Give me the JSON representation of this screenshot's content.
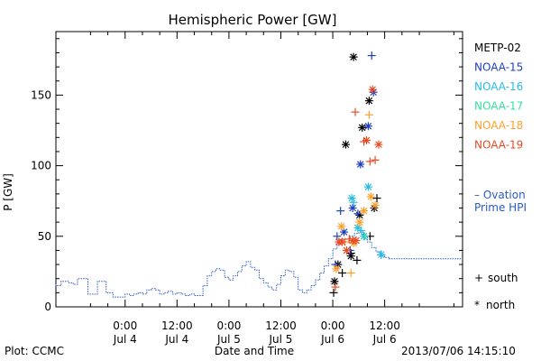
{
  "chart_data": {
    "type": "scatter",
    "title": "Hemispheric Power [GW]",
    "xlabel": "Date and Time",
    "ylabel": "P [GW]",
    "ylim": [
      0,
      195
    ],
    "y_ticks": [
      0,
      50,
      100,
      150
    ],
    "x_range_hours": [
      -8,
      39
    ],
    "x_ticks": [
      {
        "h": 0,
        "line1": "0:00",
        "line2": "Jul 4"
      },
      {
        "h": 6,
        "line1": "12:00",
        "line2": "Jul 4"
      },
      {
        "h": 12,
        "line1": "0:00",
        "line2": "Jul 5"
      },
      {
        "h": 18,
        "line1": "12:00",
        "line2": "Jul 5"
      },
      {
        "h": 24,
        "line1": "0:00",
        "line2": "Jul 6"
      },
      {
        "h": 30,
        "line1": "12:00",
        "line2": "Jul 6"
      }
    ],
    "series": [
      {
        "name": "METP-02",
        "color": "#000000",
        "points": [
          [
            24.1,
            10,
            "+"
          ],
          [
            24.2,
            18,
            "*"
          ],
          [
            24.6,
            30,
            "*"
          ],
          [
            25.1,
            24,
            "+"
          ],
          [
            25.5,
            115,
            "*"
          ],
          [
            26.1,
            36,
            "*"
          ],
          [
            26.1,
            38,
            "+"
          ],
          [
            26.4,
            177,
            "*"
          ],
          [
            26.8,
            33,
            "+"
          ],
          [
            27.1,
            65,
            "*"
          ],
          [
            27.4,
            127,
            "*"
          ],
          [
            28.2,
            146,
            "*"
          ],
          [
            28.3,
            50,
            "+"
          ],
          [
            28.8,
            70,
            "*"
          ],
          [
            29.1,
            77,
            "+"
          ]
        ]
      },
      {
        "name": "NOAA-15",
        "color": "#1f3fbf",
        "points": [
          [
            24.3,
            30,
            "+"
          ],
          [
            24.5,
            50,
            "+"
          ],
          [
            24.9,
            68,
            "+"
          ],
          [
            25.3,
            53,
            "*"
          ],
          [
            26.0,
            40,
            "+"
          ],
          [
            26.3,
            70,
            "*"
          ],
          [
            26.9,
            66,
            "+"
          ],
          [
            27.2,
            101,
            "*"
          ],
          [
            28.1,
            128,
            "*"
          ],
          [
            28.5,
            178,
            "+"
          ],
          [
            28.7,
            152,
            "*"
          ],
          [
            29.6,
            37,
            "+"
          ]
        ]
      },
      {
        "name": "NOAA-16",
        "color": "#26bde6",
        "points": [
          [
            26.2,
            77,
            "*"
          ],
          [
            26.4,
            74,
            "+"
          ],
          [
            26.9,
            56,
            "*"
          ],
          [
            27.3,
            54,
            "+"
          ],
          [
            27.6,
            50,
            "*"
          ],
          [
            28.1,
            85,
            "*"
          ],
          [
            29.6,
            37,
            "*"
          ]
        ]
      },
      {
        "name": "NOAA-17",
        "color": "#33e0a0",
        "points": [
          [
            27.7,
            50,
            "+"
          ]
        ]
      },
      {
        "name": "NOAA-18",
        "color": "#ff9f2a",
        "points": [
          [
            24.4,
            27,
            "*"
          ],
          [
            25.0,
            57,
            "*"
          ],
          [
            25.4,
            46,
            "+"
          ],
          [
            26.1,
            24,
            "+"
          ],
          [
            26.4,
            45,
            "*"
          ],
          [
            27.1,
            60,
            "*"
          ],
          [
            27.6,
            68,
            "*"
          ],
          [
            28.2,
            136,
            "+"
          ],
          [
            28.4,
            78,
            "*"
          ],
          [
            28.9,
            72,
            "*"
          ]
        ]
      },
      {
        "name": "NOAA-19",
        "color": "#e64a24",
        "points": [
          [
            24.3,
            14,
            "+"
          ],
          [
            24.7,
            46,
            "*"
          ],
          [
            25.1,
            46,
            "*"
          ],
          [
            25.6,
            40,
            "*"
          ],
          [
            25.9,
            48,
            "+"
          ],
          [
            26.3,
            47,
            "*"
          ],
          [
            26.6,
            138,
            "+"
          ],
          [
            26.7,
            47,
            "*"
          ],
          [
            27.6,
            117,
            "+"
          ],
          [
            27.9,
            118,
            "*"
          ],
          [
            28.3,
            103,
            "+"
          ],
          [
            28.6,
            154,
            "*"
          ],
          [
            28.9,
            104,
            "+"
          ],
          [
            29.3,
            115,
            "*"
          ]
        ]
      }
    ],
    "ovation": {
      "name": "Ovation Prime HPI",
      "legend_line1": "– Ovation",
      "legend_line2": "Prime HPI",
      "color": "#2a5cc8",
      "points": [
        [
          -8,
          16
        ],
        [
          -7.4,
          15
        ],
        [
          -7,
          18
        ],
        [
          -6.5,
          18
        ],
        [
          -6,
          17
        ],
        [
          -5.5,
          16
        ],
        [
          -5,
          20
        ],
        [
          -4.3,
          20
        ],
        [
          -4,
          9
        ],
        [
          -3.2,
          9
        ],
        [
          -3,
          18
        ],
        [
          -2.2,
          18
        ],
        [
          -2,
          10
        ],
        [
          -1.4,
          10
        ],
        [
          -1.2,
          7
        ],
        [
          0,
          7
        ],
        [
          0.5,
          9
        ],
        [
          1,
          8
        ],
        [
          1.5,
          9
        ],
        [
          2,
          10
        ],
        [
          2.5,
          9
        ],
        [
          3,
          12
        ],
        [
          3.5,
          13
        ],
        [
          4,
          12
        ],
        [
          4.5,
          9
        ],
        [
          5,
          10
        ],
        [
          5.5,
          11
        ],
        [
          6,
          9
        ],
        [
          6.5,
          10
        ],
        [
          7,
          9
        ],
        [
          7.5,
          8
        ],
        [
          8,
          9
        ],
        [
          8.5,
          8
        ],
        [
          9,
          8
        ],
        [
          9.5,
          15
        ],
        [
          10,
          22
        ],
        [
          10.5,
          25
        ],
        [
          11,
          27
        ],
        [
          11.5,
          26
        ],
        [
          12,
          21
        ],
        [
          12.5,
          19
        ],
        [
          13,
          22
        ],
        [
          13.5,
          25
        ],
        [
          14,
          29
        ],
        [
          14.5,
          32
        ],
        [
          15,
          28
        ],
        [
          15.5,
          26
        ],
        [
          16,
          20
        ],
        [
          16.5,
          17
        ],
        [
          17,
          14
        ],
        [
          17.5,
          12
        ],
        [
          18,
          16
        ],
        [
          18.5,
          22
        ],
        [
          19,
          26
        ],
        [
          19.5,
          25
        ],
        [
          20,
          21
        ],
        [
          20.5,
          12
        ],
        [
          21,
          10
        ],
        [
          21.5,
          12
        ],
        [
          22,
          15
        ],
        [
          22.5,
          19
        ],
        [
          23,
          24
        ],
        [
          23.5,
          29
        ],
        [
          24,
          34
        ],
        [
          24.5,
          41
        ],
        [
          25,
          45
        ],
        [
          25.5,
          48
        ],
        [
          26,
          48
        ],
        [
          26.5,
          50
        ],
        [
          27,
          52
        ],
        [
          27.5,
          53
        ],
        [
          28,
          50
        ],
        [
          28.5,
          46
        ],
        [
          29,
          42
        ],
        [
          29.5,
          39
        ],
        [
          30,
          36
        ],
        [
          30.5,
          35
        ],
        [
          31,
          34
        ]
      ]
    },
    "legend": [
      {
        "name": "METP-02",
        "color": "#000000"
      },
      {
        "name": "NOAA-15",
        "color": "#1f3fbf"
      },
      {
        "name": "NOAA-16",
        "color": "#26bde6"
      },
      {
        "name": "NOAA-17",
        "color": "#33e0a0"
      },
      {
        "name": "NOAA-18",
        "color": "#ff9f2a"
      },
      {
        "name": "NOAA-19",
        "color": "#e64a24"
      }
    ],
    "markers": {
      "south_symbol": "+",
      "south_label": "south",
      "north_symbol": "*",
      "north_label": "north"
    },
    "footer": {
      "left": "Plot: CCMC",
      "right": "2013/07/06 14:15:10"
    }
  }
}
